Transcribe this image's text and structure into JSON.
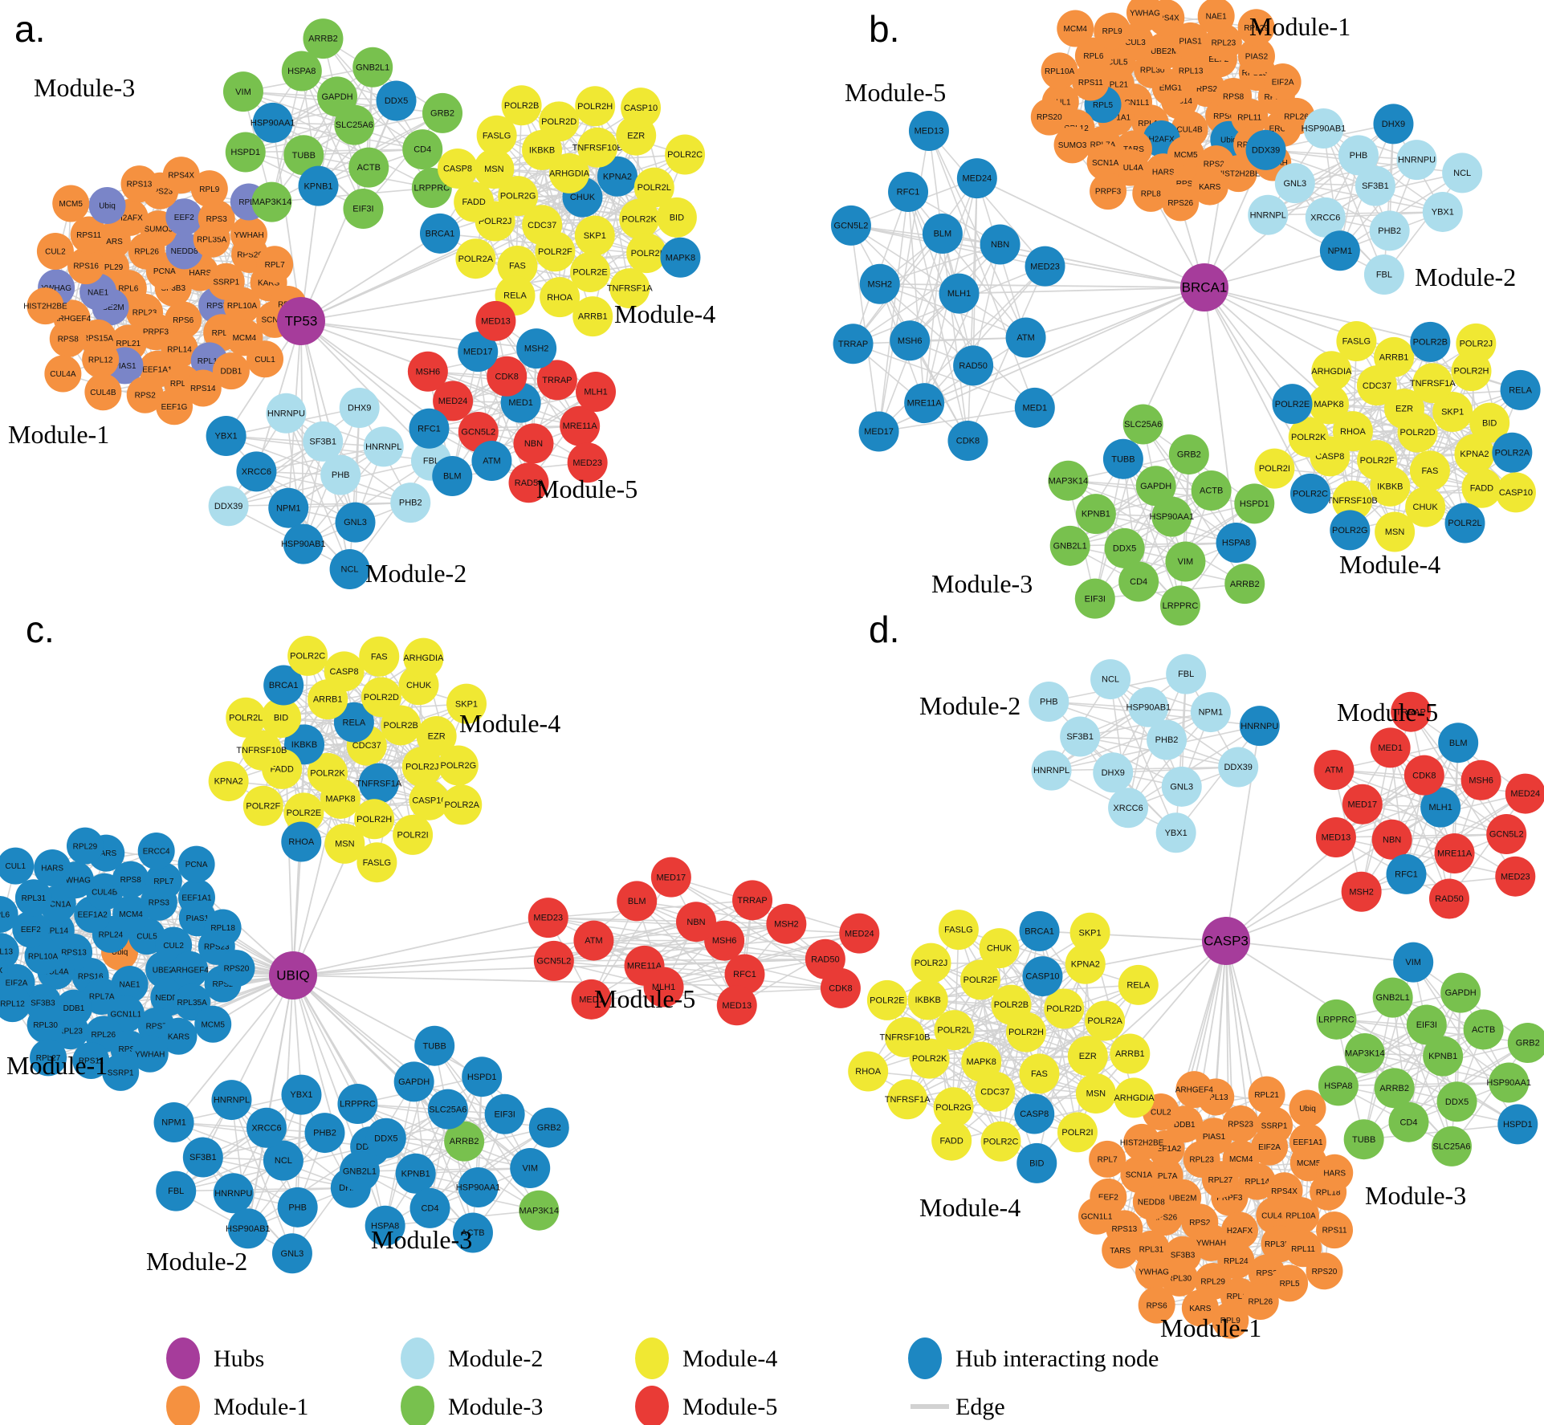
{
  "figure_title": "Hub protein interaction network modules",
  "colors": {
    "hub": "#A63C9B",
    "module1": "#F59140",
    "module2": "#ACDDEC",
    "module3": "#78C14E",
    "module4": "#F0E833",
    "module5": "#E93B36",
    "hubint": "#1D87C2",
    "slate": "#7A85C8",
    "edge": "#D2D2D2"
  },
  "legend": {
    "rows": [
      [
        {
          "label": "Hubs",
          "color": "hub",
          "type": "node"
        },
        {
          "label": "Module-2",
          "color": "module2",
          "type": "node"
        },
        {
          "label": "Module-4",
          "color": "module4",
          "type": "node"
        },
        {
          "label": "Hub interacting node",
          "color": "hubint",
          "type": "node"
        }
      ],
      [
        {
          "label": "Module-1",
          "color": "module1",
          "type": "node"
        },
        {
          "label": "Module-3",
          "color": "module3",
          "type": "node"
        },
        {
          "label": "Module-5",
          "color": "module5",
          "type": "node"
        },
        {
          "label": "Edge",
          "color": "edge",
          "type": "line"
        }
      ]
    ]
  },
  "panels": [
    {
      "id": "a",
      "letter": "a.",
      "hub": {
        "label": "TP53"
      },
      "modules": [
        {
          "name": "Module-1",
          "color": "module1",
          "nodes": [
            "SF3B3",
            "RPL23",
            "PCNA",
            "RPS6",
            "RPL6",
            "HARS",
            "PRPF3",
            "RPL26",
            "RPS7",
            "UBE2M",
            "NEDD8",
            "RPL14",
            "RPL29",
            "SSRP1",
            "RPL21",
            "SUMO3",
            "RPL8",
            "NAE1",
            "RPL35A",
            "EEF1A1",
            "TARS",
            "RPL10A",
            "RPS15A",
            "EEF2",
            "RPL11",
            "RPS16",
            "RPS20",
            "PIAS1",
            "H2AFX",
            "MCM4",
            "ARHGEF4",
            "RPS3",
            "RPL13",
            "RPS11",
            "KARS",
            "RPL12",
            "RPS23",
            "DDB1",
            "YWHAG",
            "YWHAH",
            "RPS2",
            "Ubiq",
            "SCN1A",
            "RPS8",
            "RPL9",
            "RPS14",
            "CUL2",
            "RPL7",
            "CUL4B",
            "RPS13",
            "CUL1",
            "HIST2H2BE",
            "RPL5",
            "EEF1G",
            "MCM5",
            "RPL3",
            "CUL4A",
            "RPS4X"
          ],
          "accents": {
            "slate": [
              "RPL11",
              "RPL5",
              "EEF2",
              "UBE2M",
              "NEDD8",
              "PIAS1",
              "RPS7",
              "NAE1",
              "YWHAG",
              "Ubiq"
            ]
          }
        },
        {
          "name": "Module-2",
          "color": "module2",
          "nodes": [
            "PHB",
            "NPM1",
            "SF3B1",
            "GNL3",
            "XRCC6",
            "HNRNPL",
            "HSP90AB1",
            "HNRNPU",
            "PHB2",
            "DDX39",
            "DHX9",
            "NCL",
            "YBX1",
            "FBL"
          ],
          "accents": {
            "hubint": [
              "NPM1",
              "GNL3",
              "XRCC6",
              "HSP90AB1",
              "NCL",
              "YBX1"
            ]
          }
        },
        {
          "name": "Module-3",
          "color": "module3",
          "nodes": [
            "SLC25A6",
            "TUBB",
            "GAPDH",
            "ACTB",
            "HSP90AA1",
            "DDX5",
            "KPNB1",
            "HSPA8",
            "CD4",
            "HSPD1",
            "GNB2L1",
            "EIF3I",
            "VIM",
            "GRB2",
            "MAP3K14",
            "ARRB2",
            "LRPPRC"
          ],
          "accents": {
            "hubint": [
              "DDX5",
              "KPNB1",
              "HSP90AA1"
            ]
          }
        },
        {
          "name": "Module-4",
          "color": "module4",
          "nodes": [
            "CHUK",
            "CDC37",
            "ARHGDIA",
            "SKP1",
            "POLR2G",
            "KPNA2",
            "POLR2F",
            "IKBKB",
            "POLR2K",
            "POLR2J",
            "TNFRSF10B",
            "POLR2E",
            "MSN",
            "POLR2L",
            "FAS",
            "POLR2D",
            "POLR2I",
            "FADD",
            "EZR",
            "RHOA",
            "FASLG",
            "BID",
            "POLR2A",
            "POLR2H",
            "TNFRSF1A",
            "CASP8",
            "POLR2C",
            "RELA",
            "POLR2B",
            "MAPK8",
            "BRCA1",
            "CASP10",
            "ARRB1"
          ],
          "accents": {
            "hubint": [
              "CHUK",
              "KPNA2",
              "MAPK8",
              "BRCA1"
            ]
          }
        },
        {
          "name": "Module-5",
          "color": "module5",
          "nodes": [
            "MED1",
            "GCN5L2",
            "CDK8",
            "NBN",
            "MED24",
            "TRRAP",
            "ATM",
            "MED17",
            "MRE11A",
            "RFC1",
            "MSH2",
            "RAD50",
            "MSH6",
            "MLH1",
            "BLM",
            "MED13",
            "MED23"
          ],
          "accents": {
            "hubint": [
              "MED1",
              "ATM",
              "MED17",
              "RFC1",
              "MSH2",
              "BLM"
            ]
          }
        }
      ]
    },
    {
      "id": "b",
      "letter": "b.",
      "hub": {
        "label": "BRCA1"
      },
      "modules": [
        {
          "name": "Module-1",
          "color": "module1",
          "nodes": [
            "RPS14",
            "RPL14",
            "EMG1",
            "CUL4B",
            "GCN1L1",
            "RPS2",
            "H2AFX",
            "RPL30",
            "RPS6",
            "EEF1A1",
            "RPL13",
            "MCM5",
            "RPL21",
            "RPS8",
            "TARS",
            "UBE2M",
            "Ubiq",
            "RPL5",
            "EEF2",
            "HARS",
            "CUL5",
            "RPL11",
            "RPL7A",
            "PIAS1",
            "RPS23",
            "RPS11",
            "RPS15A",
            "CUL4A",
            "CUL3",
            "RPL35A",
            "RPL12",
            "RPL23",
            "RPS13",
            "RPL6",
            "RPL18",
            "SCN1A",
            "RPS4X",
            "HIST2H2BE",
            "CUL1",
            "PIAS2",
            "RPL8",
            "RPL9",
            "ERCC4",
            "SUMO3",
            "NAE1",
            "KARS",
            "RPL10A",
            "EIF2A",
            "PRPF3",
            "YWHAG",
            "YWHAH",
            "RPS20",
            "RPL29",
            "RPS26",
            "MCM4",
            "RPL26"
          ],
          "accents": {
            "hubint": [
              "H2AFX",
              "Ubiq",
              "RPL5"
            ]
          }
        },
        {
          "name": "Module-2",
          "color": "module2",
          "nodes": [
            "SF3B1",
            "XRCC6",
            "PHB",
            "PHB2",
            "GNL3",
            "HNRNPU",
            "NPM1",
            "HSP90AB1",
            "YBX1",
            "HNRNPL",
            "DHX9",
            "FBL",
            "DDX39",
            "NCL"
          ],
          "accents": {
            "hubint": [
              "NPM1",
              "DHX9",
              "DDX39"
            ]
          }
        },
        {
          "name": "Module-3",
          "color": "module3",
          "nodes": [
            "HSP90AA1",
            "DDX5",
            "GAPDH",
            "VIM",
            "KPNB1",
            "ACTB",
            "CD4",
            "TUBB",
            "HSPA8",
            "GNB2L1",
            "GRB2",
            "LRPPRC",
            "MAP3K14",
            "HSPD1",
            "EIF3I",
            "SLC25A6",
            "ARRB2"
          ],
          "accents": {
            "hubint": [
              "TUBB",
              "HSPA8"
            ]
          }
        },
        {
          "name": "Module-4",
          "color": "module4",
          "nodes": [
            "POLR2D",
            "POLR2F",
            "EZR",
            "FAS",
            "RHOA",
            "SKP1",
            "IKBKB",
            "CDC37",
            "KPNA2",
            "CASP8",
            "TNFRSF1A",
            "CHUK",
            "MAPK8",
            "BID",
            "TNFRSF10B",
            "ARRB1",
            "FADD",
            "POLR2K",
            "POLR2H",
            "MSN",
            "ARHGDIA",
            "POLR2A",
            "POLR2C",
            "POLR2B",
            "POLR2L",
            "POLR2E",
            "RELA",
            "POLR2G",
            "FASLG",
            "CASP10",
            "POLR2I",
            "POLR2J"
          ],
          "accents": {
            "hubint": [
              "POLR2A",
              "POLR2C",
              "POLR2B",
              "POLR2L",
              "POLR2E",
              "RELA",
              "POLR2G"
            ]
          }
        },
        {
          "name": "Module-5",
          "color": "hubint",
          "nodes": [
            "MLH1",
            "MSH6",
            "BLM",
            "RAD50",
            "MSH2",
            "NBN",
            "MRE11A",
            "RFC1",
            "ATM",
            "TRRAP",
            "MED24",
            "CDK8",
            "GCN5L2",
            "MED23",
            "MED17",
            "MED13",
            "MED1"
          ],
          "accents": {}
        }
      ]
    },
    {
      "id": "c",
      "letter": "c.",
      "hub": {
        "label": "UBIQ"
      },
      "modules": [
        {
          "name": "Module-1",
          "color": "hubint",
          "nodes": [
            "Ubiq",
            "RPS16",
            "RPL24",
            "NAE1",
            "RPS13",
            "CUL5",
            "RPL7A",
            "EEF1A2",
            "UBE2I",
            "CUL4A",
            "MCM4",
            "GCN1L1",
            "RPL14",
            "CUL2",
            "DDB1",
            "CUL4B",
            "NEDD8",
            "RPL10A",
            "RPS3",
            "RPL26",
            "SCN1A",
            "ARHGEF4",
            "SF3B3",
            "RPS8",
            "RPS7",
            "EEF2",
            "PIAS1",
            "RPL23",
            "YWHAG",
            "RPL35A",
            "EIF2A",
            "RPL7",
            "RPS6",
            "RPL31",
            "RPS23",
            "RPL30",
            "TARS",
            "KARS",
            "RPL13",
            "EEF1A1",
            "RPS11",
            "HARS",
            "RPS2",
            "RPL12",
            "ERCC4",
            "YWHAH",
            "RPL6",
            "RPL18",
            "RPL27",
            "RPL29",
            "MCM5",
            "RPS4X",
            "PCNA",
            "SSRP1",
            "CUL1",
            "RPS20"
          ],
          "accents": {
            "module1": [
              "Ubiq"
            ]
          }
        },
        {
          "name": "Module-2",
          "color": "hubint",
          "nodes": [
            "NCL",
            "HNRNPU",
            "XRCC6",
            "PHB",
            "SF3B1",
            "PHB2",
            "HSP90AB1",
            "HNRNPL",
            "DHX9",
            "FBL",
            "YBX1",
            "GNL3",
            "NPM1",
            "DDX39"
          ],
          "accents": {}
        },
        {
          "name": "Module-3",
          "color": "hubint",
          "nodes": [
            "ARRB2",
            "KPNB1",
            "SLC25A6",
            "HSP90AA1",
            "DDX5",
            "EIF3I",
            "CD4",
            "GAPDH",
            "VIM",
            "GNB2L1",
            "HSPD1",
            "ACTB",
            "LRPPRC",
            "GRB2",
            "HSPA8",
            "TUBB",
            "MAP3K14"
          ],
          "accents": {
            "module3": [
              "ARRB2",
              "MAP3K14"
            ]
          }
        },
        {
          "name": "Module-4",
          "color": "module4",
          "nodes": [
            "CDC37",
            "POLR2K",
            "RELA",
            "TNFRSF1A",
            "IKBKB",
            "POLR2B",
            "MAPK8",
            "ARRB1",
            "POLR2J",
            "FADD",
            "POLR2D",
            "POLR2H",
            "BID",
            "EZR",
            "POLR2E",
            "CASP8",
            "CASP10",
            "TNFRSF10B",
            "CHUK",
            "MSN",
            "BRCA1",
            "POLR2G",
            "POLR2F",
            "FAS",
            "POLR2I",
            "POLR2L",
            "SKP1",
            "RHOA",
            "POLR2C",
            "POLR2A",
            "KPNA2",
            "ARHGDIA",
            "FASLG"
          ],
          "accents": {
            "hubint": [
              "BRCA1",
              "IKBKB",
              "TNFRSF1A",
              "RELA",
              "RHOA"
            ]
          }
        },
        {
          "name": "Module-5",
          "color": "module5",
          "nodes": [
            "MSH6",
            "MRE11A",
            "NBN",
            "RFC1",
            "ATM",
            "MSH2",
            "MLH1",
            "BLM",
            "RAD50",
            "GCN5L2",
            "TRRAP",
            "MED13",
            "MED23",
            "MED24",
            "MED1",
            "MED17",
            "CDK8"
          ],
          "accents": {}
        }
      ]
    },
    {
      "id": "d",
      "letter": "d.",
      "hub": {
        "label": "CASP3"
      },
      "modules": [
        {
          "name": "Module-1",
          "color": "module1",
          "nodes": [
            "PRPF3",
            "RPS2",
            "RPL27",
            "H2AFX",
            "UBE2M",
            "RPL14",
            "YWHAH",
            "RPL23",
            "CUL4A",
            "RPS26",
            "MCM4",
            "RPL24",
            "RPL7A",
            "RPS4X",
            "SF3B3",
            "PIAS1",
            "RPL35A",
            "NEDD8",
            "EIF2A",
            "RPL29",
            "EEF1A2",
            "RPL10A",
            "RPL31",
            "RPS23",
            "RPS3",
            "SCN1A",
            "MCM5",
            "RPL30",
            "DDB1",
            "RPL11",
            "RPS13",
            "SSRP1",
            "RPL12",
            "HIST2H2BE",
            "RPL18",
            "YWHAG",
            "RPL13",
            "RPL5",
            "EEF2",
            "EEF1A1",
            "KARS",
            "CUL2",
            "RPS11",
            "TARS",
            "RPL21",
            "RPL26",
            "RPL7",
            "HARS",
            "RPS6",
            "ARHGEF4",
            "RPS20",
            "GCN1L1",
            "Ubiq",
            "RPL9"
          ],
          "accents": {}
        },
        {
          "name": "Module-2",
          "color": "module2",
          "nodes": [
            "PHB2",
            "DHX9",
            "HSP90AB1",
            "GNL3",
            "SF3B1",
            "NPM1",
            "XRCC6",
            "NCL",
            "DDX39",
            "HNRNPL",
            "FBL",
            "YBX1",
            "PHB",
            "HNRNPU"
          ],
          "accents": {
            "hubint": [
              "HNRNPU"
            ]
          }
        },
        {
          "name": "Module-3",
          "color": "module3",
          "nodes": [
            "KPNB1",
            "ARRB2",
            "EIF3I",
            "DDX5",
            "MAP3K14",
            "ACTB",
            "CD4",
            "GNB2L1",
            "HSP90AA1",
            "HSPA8",
            "GAPDH",
            "SLC25A6",
            "LRPPRC",
            "GRB2",
            "TUBB",
            "VIM",
            "HSPD1"
          ],
          "accents": {
            "hubint": [
              "VIM",
              "HSPD1"
            ]
          }
        },
        {
          "name": "Module-4",
          "color": "module4",
          "nodes": [
            "POLR2H",
            "MAPK8",
            "POLR2B",
            "FAS",
            "POLR2L",
            "POLR2D",
            "CDC37",
            "POLR2F",
            "EZR",
            "POLR2K",
            "CASP10",
            "CASP8",
            "IKBKB",
            "POLR2A",
            "POLR2G",
            "CHUK",
            "MSN",
            "TNFRSF10B",
            "KPNA2",
            "POLR2C",
            "POLR2J",
            "ARRB1",
            "TNFRSF1A",
            "BRCA1",
            "POLR2I",
            "POLR2E",
            "RELA",
            "FADD",
            "FASLG",
            "ARHGDIA",
            "RHOA",
            "SKP1",
            "BID"
          ],
          "accents": {
            "hubint": [
              "BRCA1",
              "CASP10",
              "CASP8",
              "BID"
            ]
          }
        },
        {
          "name": "Module-5",
          "color": "module5",
          "nodes": [
            "MLH1",
            "NBN",
            "CDK8",
            "MRE11A",
            "MED17",
            "MSH6",
            "RFC1",
            "MED1",
            "GCN5L2",
            "MED13",
            "BLM",
            "RAD50",
            "ATM",
            "MED24",
            "MSH2",
            "TRRAP",
            "MED23"
          ],
          "accents": {
            "hubint": [
              "RFC1",
              "MLH1",
              "BLM"
            ]
          }
        }
      ]
    }
  ]
}
